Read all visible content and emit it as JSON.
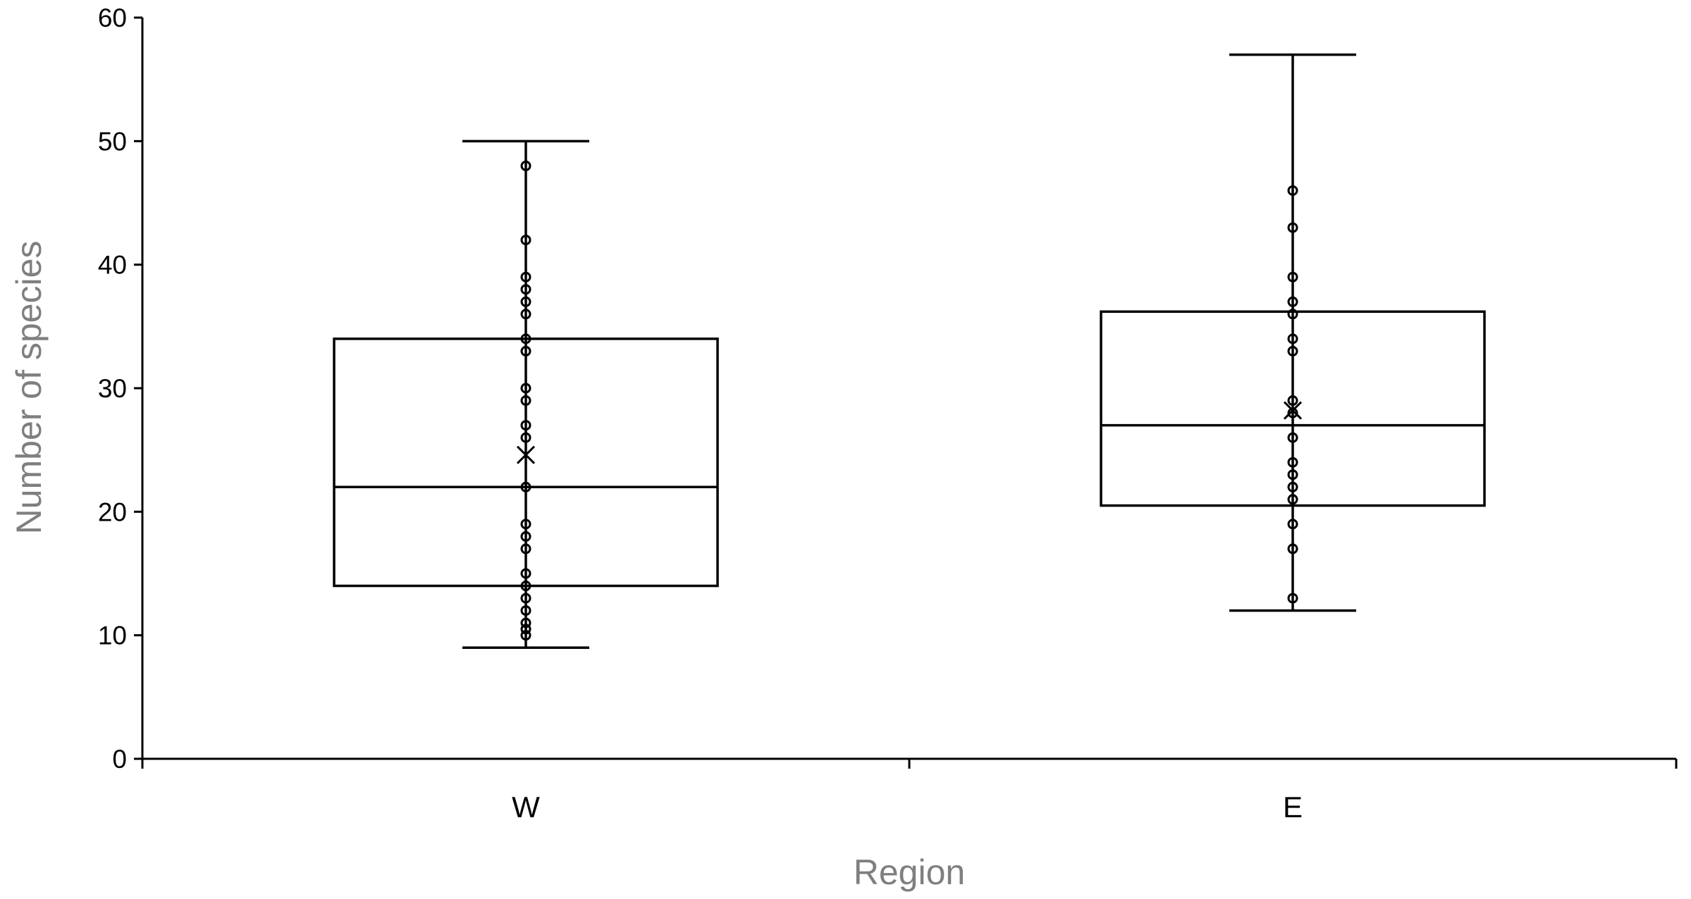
{
  "chart_data": {
    "type": "box",
    "title": "",
    "xlabel": "Region",
    "ylabel": "Number of species",
    "ylim": [
      0,
      60
    ],
    "yticks": [
      0,
      10,
      20,
      30,
      40,
      50,
      60
    ],
    "categories": [
      "W",
      "E"
    ],
    "grid": false,
    "legend": "none",
    "series": [
      {
        "category": "W",
        "whisker_low": 9,
        "q1": 14,
        "median": 22,
        "q3": 34,
        "whisker_high": 50,
        "mean": 24.6,
        "points": [
          10,
          10.5,
          11,
          12,
          13,
          14,
          15,
          17,
          18,
          19,
          22,
          26,
          27,
          29,
          30,
          33,
          34,
          36,
          37,
          38,
          39,
          42,
          48
        ]
      },
      {
        "category": "E",
        "whisker_low": 12,
        "q1": 20.5,
        "median": 27,
        "q3": 36.2,
        "whisker_high": 57,
        "mean": 28.2,
        "points": [
          13,
          17,
          19,
          21,
          22,
          23,
          24,
          26,
          28,
          29,
          33,
          34,
          36,
          37,
          39,
          43,
          46
        ]
      }
    ]
  }
}
